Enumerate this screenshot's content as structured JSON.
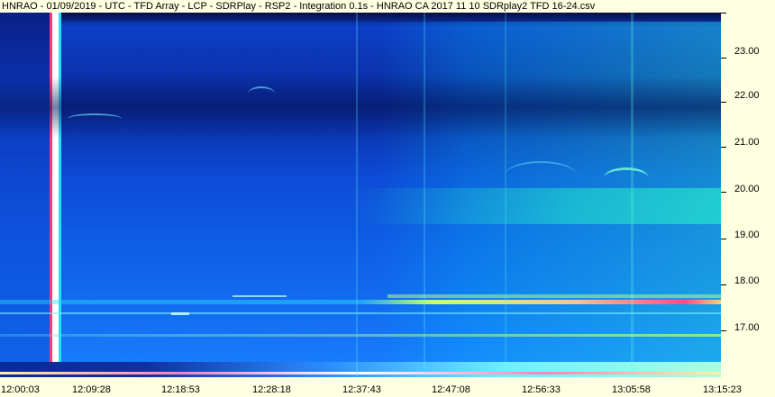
{
  "window": {
    "title": "HNRAO - 01/09/2019 - UTC - TFD Array - LCP - SDRPlay - RSP2 - Integration 0.1s - HNRAO CA 2017 11 10 SDRplay2 TFD 16-24.csv"
  },
  "chart_data": {
    "type": "heatmap",
    "title": "HNRAO - 01/09/2019 - UTC - TFD Array - LCP - SDRPlay - RSP2 - Integration 0.1s - HNRAO CA 2017 11 10 SDRplay2 TFD 16-24.csv",
    "xlabel": "",
    "ylabel": "",
    "x_ticks": [
      "12:00:03",
      "12:09:28",
      "12:18:53",
      "12:28:18",
      "12:37:43",
      "12:47:08",
      "12:56:33",
      "13:05:58",
      "13:15:23"
    ],
    "y_ticks": [
      "23.00",
      "22.00",
      "21.00",
      "20.00",
      "19.00",
      "18.00",
      "17.00"
    ],
    "y_range": [
      16.0,
      24.0
    ],
    "colormap": [
      "#0a1a7a",
      "#0d47d6",
      "#1a88ff",
      "#22d4ff",
      "#3cffc8",
      "#d8ff6a",
      "#ffb0b0",
      "#ff2a7a"
    ]
  }
}
